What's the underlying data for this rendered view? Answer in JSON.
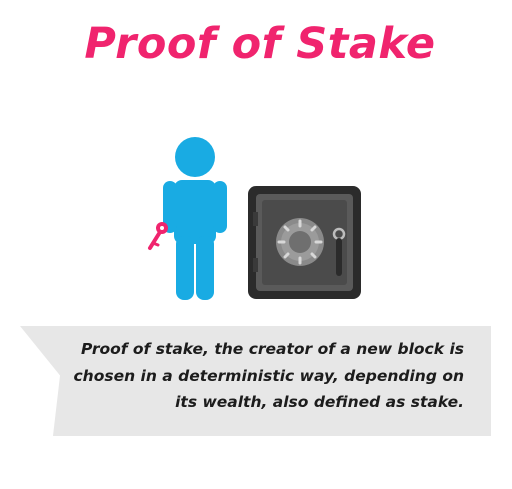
{
  "title": "Proof of Stake",
  "caption": {
    "lines": [
      "Proof of stake, the creator of a new block is",
      "chosen in a deterministic way, depending on",
      "its wealth, also defined as stake."
    ]
  },
  "colors": {
    "title": "#f0246e",
    "person": "#19abe3",
    "key": "#f0246e",
    "safe_outer": "#2b2b2b",
    "safe_inner": "#5a5a5a",
    "banner": "#e7e7e7"
  },
  "icons": [
    "person-icon",
    "key-icon",
    "safe-icon",
    "dial-icon",
    "handle-icon"
  ]
}
